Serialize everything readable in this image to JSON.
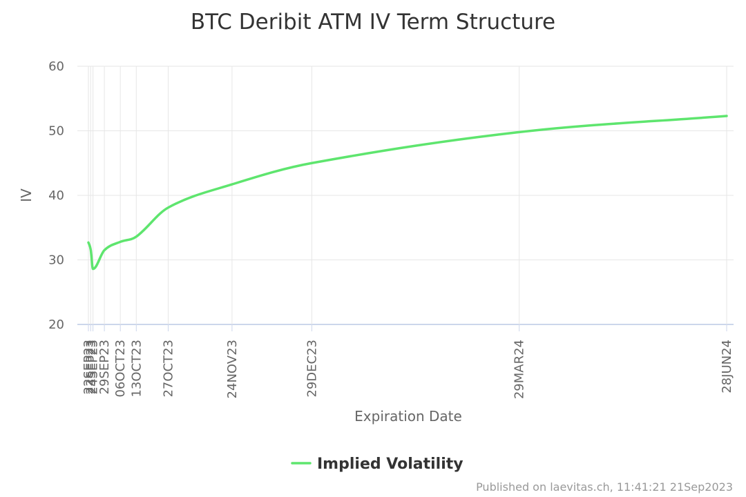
{
  "chart_data": {
    "type": "line",
    "title": "BTC Deribit ATM IV Term Structure",
    "xlabel": "Expiration Date",
    "ylabel": "IV",
    "ylim": [
      20,
      60
    ],
    "yticks": [
      20,
      30,
      40,
      50,
      60
    ],
    "grid": true,
    "legend_position": "bottom-center",
    "series": [
      {
        "name": "Implied Volatility",
        "color": "#5ee56e",
        "points": [
          {
            "x": "2023-09-22",
            "label": "22SEP23",
            "y": 32.7
          },
          {
            "x": "2023-09-23",
            "label": "23SEP23",
            "y": 31.6
          },
          {
            "x": "2023-09-24",
            "label": "24SEP23",
            "y": 28.6
          },
          {
            "x": "2023-09-29",
            "label": "29SEP23",
            "y": 31.5
          },
          {
            "x": "2023-10-06",
            "label": "06OCT23",
            "y": 32.8
          },
          {
            "x": "2023-10-13",
            "label": "13OCT23",
            "y": 33.6
          },
          {
            "x": "2023-10-27",
            "label": "27OCT23",
            "y": 38.1
          },
          {
            "x": "2023-11-24",
            "label": "24NOV23",
            "y": 41.7
          },
          {
            "x": "2023-12-29",
            "label": "29DEC23",
            "y": 45.0
          },
          {
            "x": "2024-03-29",
            "label": "29MAR24",
            "y": 49.8
          },
          {
            "x": "2024-06-28",
            "label": "28JUN24",
            "y": 52.3
          }
        ]
      }
    ]
  },
  "credit": "Published on laevitas.ch, 11:41:21 21Sep2023"
}
